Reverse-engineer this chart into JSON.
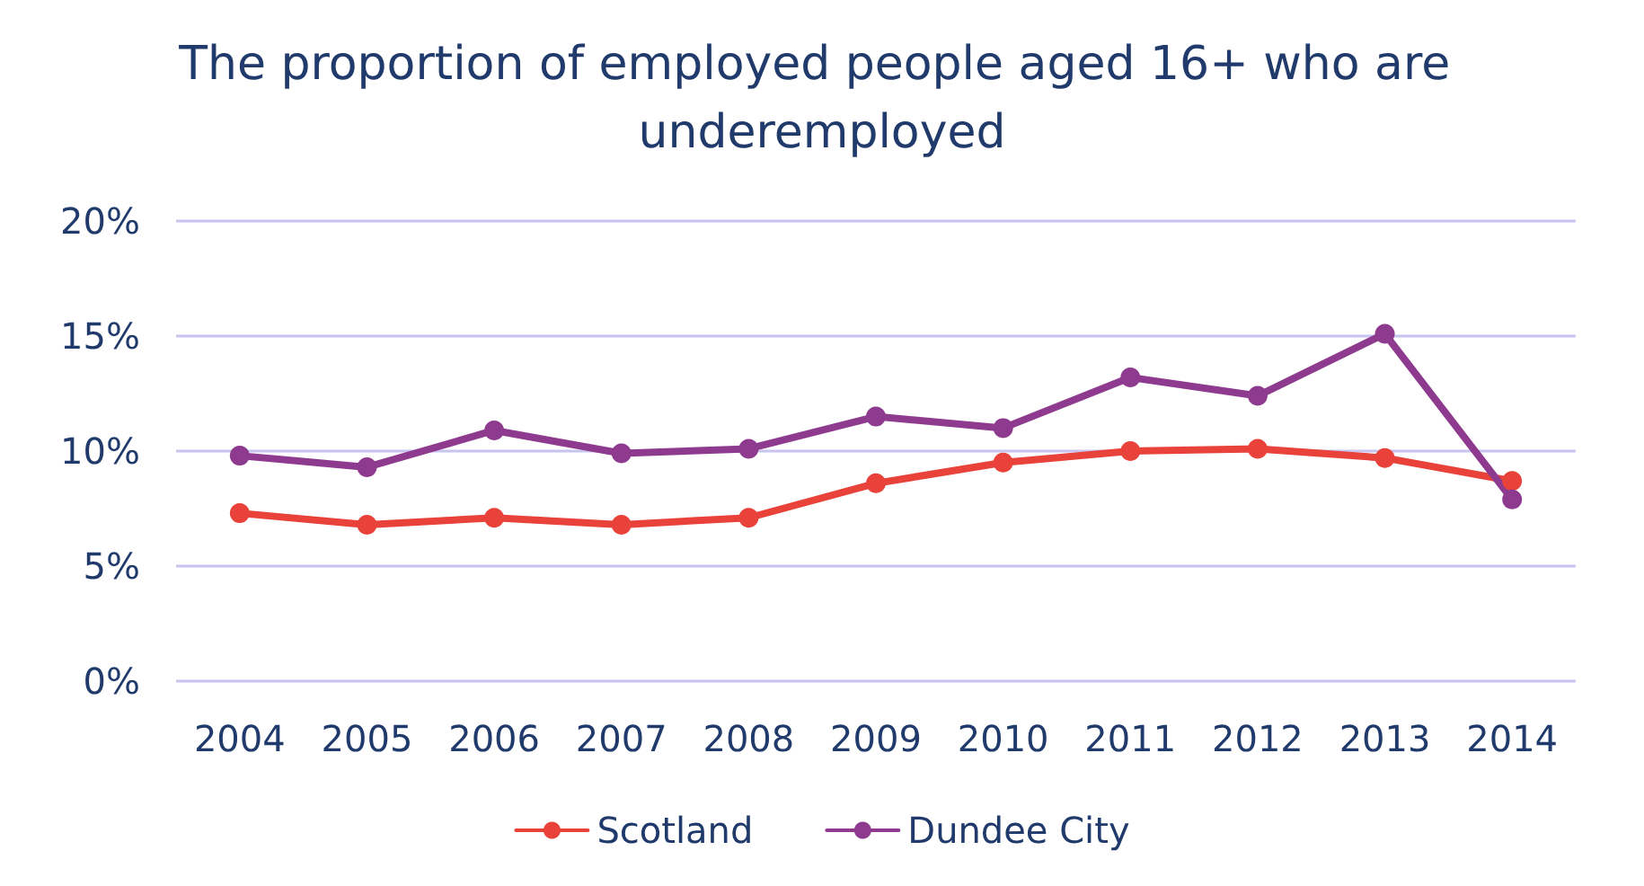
{
  "chart_data": {
    "type": "line",
    "title": "The proportion of employed people aged 16+ who are underemployed",
    "categories": [
      "2004",
      "2005",
      "2006",
      "2007",
      "2008",
      "2009",
      "2010",
      "2011",
      "2012",
      "2013",
      "2014"
    ],
    "series": [
      {
        "name": "Scotland",
        "color": "#e8423a",
        "values": [
          7.3,
          6.8,
          7.1,
          6.8,
          7.1,
          8.6,
          9.5,
          10.0,
          10.1,
          9.7,
          8.7
        ]
      },
      {
        "name": "Dundee City",
        "color": "#8e3a8e",
        "values": [
          9.8,
          9.3,
          10.9,
          9.9,
          10.1,
          11.5,
          11.0,
          13.2,
          12.4,
          15.1,
          7.9
        ]
      }
    ],
    "ylim": [
      0,
      20
    ],
    "yticks": [
      {
        "value": 0,
        "label": "0%"
      },
      {
        "value": 5,
        "label": "5%"
      },
      {
        "value": 10,
        "label": "10%"
      },
      {
        "value": 15,
        "label": "15%"
      },
      {
        "value": 20,
        "label": "20%"
      }
    ],
    "grid": "y",
    "legend": "bottom",
    "marker": "circle",
    "line_style": "solid"
  }
}
